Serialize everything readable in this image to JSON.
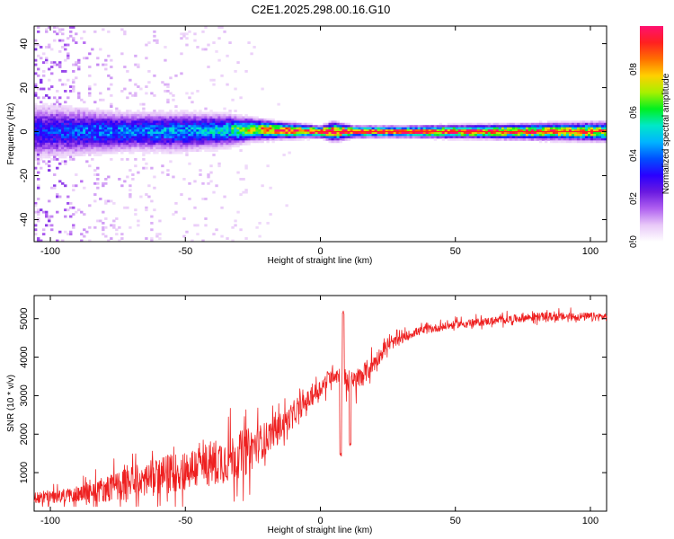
{
  "title": "C2E1.2025.298.00.16.G10",
  "colors": {
    "background": "#ffffff",
    "axis": "#000000",
    "snr_line": "#ee2020",
    "colormap": [
      "#ffffff",
      "#e8c8f8",
      "#b060f0",
      "#6a1ae0",
      "#2a00ff",
      "#0050ff",
      "#00b4ff",
      "#00e8c8",
      "#00f020",
      "#a8f000",
      "#ffd000",
      "#ff7000",
      "#ff2020",
      "#ff1070"
    ]
  },
  "chart_data": [
    {
      "type": "heatmap",
      "name": "spectrogram",
      "xlabel": "Height of straight line (km)",
      "ylabel": "Frequency (Hz)",
      "xlim": [
        -106,
        106
      ],
      "ylim": [
        -50,
        48
      ],
      "xticks": [
        -100,
        -50,
        0,
        50,
        100
      ],
      "yticks": [
        -40,
        -20,
        0,
        20,
        40
      ],
      "colorbar": {
        "label": "Normalized spectral amplitude",
        "range": [
          0,
          1
        ],
        "ticks": [
          "0.0",
          "0.2",
          "0.4",
          "0.6",
          "0.8"
        ]
      },
      "band_profile": [
        {
          "x": -106,
          "center": 0,
          "width": 10,
          "amp": 0.32,
          "scatter": 0.9
        },
        {
          "x": -95,
          "center": 0,
          "width": 9,
          "amp": 0.36,
          "scatter": 0.8
        },
        {
          "x": -85,
          "center": 0,
          "width": 8,
          "amp": 0.4,
          "scatter": 0.45
        },
        {
          "x": -70,
          "center": 0,
          "width": 7,
          "amp": 0.42,
          "scatter": 0.3
        },
        {
          "x": -50,
          "center": 0,
          "width": 7,
          "amp": 0.45,
          "scatter": 0.28
        },
        {
          "x": -35,
          "center": 0.5,
          "width": 6,
          "amp": 0.5,
          "scatter": 0.2
        },
        {
          "x": -25,
          "center": 1,
          "width": 4,
          "amp": 0.75,
          "scatter": 0.08
        },
        {
          "x": -15,
          "center": 0.5,
          "width": 3,
          "amp": 0.92,
          "scatter": 0.03
        },
        {
          "x": 0,
          "center": 0,
          "width": 2,
          "amp": 1.0,
          "scatter": 0
        },
        {
          "x": 5,
          "center": 0,
          "width": 3.5,
          "amp": 0.95,
          "scatter": 0
        },
        {
          "x": 12,
          "center": 0,
          "width": 2,
          "amp": 1.0,
          "scatter": 0
        },
        {
          "x": 30,
          "center": 0,
          "width": 2,
          "amp": 0.95,
          "scatter": 0
        },
        {
          "x": 60,
          "center": 0,
          "width": 2.5,
          "amp": 0.9,
          "scatter": 0
        },
        {
          "x": 85,
          "center": 0,
          "width": 3,
          "amp": 0.85,
          "scatter": 0
        },
        {
          "x": 106,
          "center": 0,
          "width": 3.5,
          "amp": 0.8,
          "scatter": 0
        }
      ]
    },
    {
      "type": "line",
      "name": "snr",
      "xlabel": "Height of straight line (km)",
      "ylabel": "SNR (10 * v/v)",
      "xlim": [
        -106,
        106
      ],
      "ylim": [
        0,
        5600
      ],
      "xticks": [
        -100,
        -50,
        0,
        50,
        100
      ],
      "yticks": [
        1000,
        2000,
        3000,
        4000,
        5000
      ],
      "trend": [
        {
          "x": -106,
          "y": 350,
          "noise": 250
        },
        {
          "x": -95,
          "y": 400,
          "noise": 300
        },
        {
          "x": -85,
          "y": 500,
          "noise": 450
        },
        {
          "x": -75,
          "y": 650,
          "noise": 650
        },
        {
          "x": -60,
          "y": 900,
          "noise": 800
        },
        {
          "x": -45,
          "y": 1150,
          "noise": 950
        },
        {
          "x": -35,
          "y": 1350,
          "noise": 1050
        },
        {
          "x": -27,
          "y": 1550,
          "noise": 1000
        },
        {
          "x": -20,
          "y": 1900,
          "noise": 700
        },
        {
          "x": -10,
          "y": 2500,
          "noise": 450
        },
        {
          "x": 0,
          "y": 3200,
          "noise": 400
        },
        {
          "x": 5,
          "y": 3600,
          "noise": 400
        },
        {
          "x": 12,
          "y": 3300,
          "noise": 550
        },
        {
          "x": 18,
          "y": 3700,
          "noise": 450
        },
        {
          "x": 25,
          "y": 4300,
          "noise": 250
        },
        {
          "x": 35,
          "y": 4650,
          "noise": 180
        },
        {
          "x": 50,
          "y": 4850,
          "noise": 160
        },
        {
          "x": 65,
          "y": 4950,
          "noise": 170
        },
        {
          "x": 80,
          "y": 5050,
          "noise": 180
        },
        {
          "x": 95,
          "y": 5050,
          "noise": 180
        },
        {
          "x": 106,
          "y": 5050,
          "noise": 180
        }
      ],
      "features": [
        {
          "x": 8.5,
          "y": 5150,
          "note": "peak"
        },
        {
          "x": 7.5,
          "y": 1450,
          "note": "dip"
        },
        {
          "x": 11,
          "y": 1750,
          "note": "dip"
        }
      ]
    }
  ]
}
